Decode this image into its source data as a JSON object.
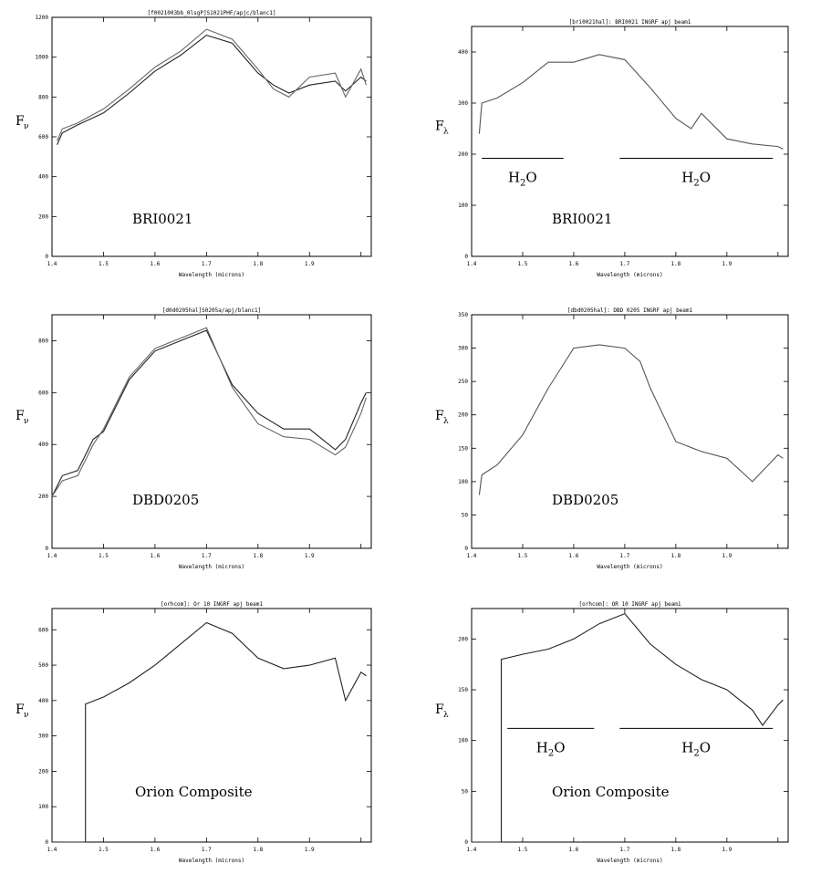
{
  "chart_data": [
    {
      "type": "line",
      "title": "[f0021003bb_0lsgP]S1021PHF/apjc/blanc1]",
      "xlabel": "Wavelength (microns)",
      "ylabel": "F",
      "ylabel_sub": "ν",
      "xlim": [
        1.4,
        2.02
      ],
      "ylim": [
        0,
        1200
      ],
      "xticks": [
        "1.4",
        "1.5",
        "1.6",
        "1.7",
        "1.8",
        "1.9"
      ],
      "yticks": [
        "0",
        "200",
        "400",
        "600",
        "800",
        "1000",
        "1200"
      ],
      "label": "BRI0021",
      "h2o_label": "",
      "series": [
        {
          "color": "#222222",
          "x": [
            1.41,
            1.42,
            1.45,
            1.5,
            1.55,
            1.6,
            1.65,
            1.7,
            1.75,
            1.8,
            1.83,
            1.86,
            1.9,
            1.95,
            1.97,
            2.0,
            2.01
          ],
          "y": [
            560,
            620,
            660,
            720,
            820,
            930,
            1010,
            1110,
            1070,
            920,
            860,
            820,
            860,
            880,
            830,
            900,
            880
          ]
        },
        {
          "color": "#666666",
          "x": [
            1.41,
            1.42,
            1.45,
            1.5,
            1.55,
            1.6,
            1.65,
            1.7,
            1.75,
            1.8,
            1.83,
            1.86,
            1.9,
            1.95,
            1.97,
            2.0,
            2.01
          ],
          "y": [
            580,
            640,
            670,
            740,
            840,
            950,
            1030,
            1140,
            1090,
            940,
            840,
            800,
            900,
            920,
            800,
            940,
            860
          ]
        }
      ]
    },
    {
      "type": "line",
      "title": "[bri0021hal]: BRI0021 INGRF apj beam1",
      "xlabel": "Wavelength (microns)",
      "ylabel": "F",
      "ylabel_sub": "λ",
      "xlim": [
        1.4,
        2.02
      ],
      "ylim": [
        0,
        450
      ],
      "xticks": [
        "1.4",
        "1.5",
        "1.6",
        "1.7",
        "1.8",
        "1.9"
      ],
      "yticks": [
        "0",
        "100",
        "200",
        "300",
        "400"
      ],
      "label": "BRI0021",
      "h2o_label": "H2O",
      "h2o_bands": [
        [
          1.42,
          1.58
        ],
        [
          1.69,
          1.99
        ]
      ],
      "h2o_level": 192,
      "series": [
        {
          "color": "#555555",
          "x": [
            1.415,
            1.42,
            1.45,
            1.5,
            1.55,
            1.6,
            1.65,
            1.7,
            1.75,
            1.8,
            1.83,
            1.85,
            1.9,
            1.95,
            2.0,
            2.01
          ],
          "y": [
            240,
            300,
            310,
            340,
            380,
            380,
            395,
            385,
            330,
            270,
            250,
            280,
            230,
            220,
            215,
            210
          ]
        }
      ]
    },
    {
      "type": "line",
      "title": "[d0d0205hal]S0205a/apj/blanc1]",
      "xlabel": "Wavelength (microns)",
      "ylabel": "F",
      "ylabel_sub": "ν",
      "xlim": [
        1.4,
        2.02
      ],
      "ylim": [
        0,
        900
      ],
      "xticks": [
        "1.4",
        "1.5",
        "1.6",
        "1.7",
        "1.8",
        "1.9"
      ],
      "yticks": [
        "0",
        "200",
        "400",
        "600",
        "800"
      ],
      "label": "DBD0205",
      "h2o_label": "",
      "series": [
        {
          "color": "#222222",
          "x": [
            1.4,
            1.42,
            1.45,
            1.48,
            1.5,
            1.55,
            1.6,
            1.65,
            1.7,
            1.75,
            1.8,
            1.85,
            1.9,
            1.95,
            1.97,
            2.0,
            2.01
          ],
          "y": [
            200,
            280,
            300,
            420,
            450,
            650,
            760,
            800,
            840,
            630,
            520,
            460,
            460,
            380,
            420,
            560,
            600
          ]
        },
        {
          "color": "#666666",
          "x": [
            1.4,
            1.42,
            1.45,
            1.48,
            1.5,
            1.55,
            1.6,
            1.65,
            1.7,
            1.75,
            1.8,
            1.85,
            1.9,
            1.95,
            1.97,
            2.0,
            2.01
          ],
          "y": [
            200,
            260,
            280,
            400,
            460,
            660,
            770,
            810,
            850,
            620,
            480,
            430,
            420,
            360,
            390,
            520,
            580
          ]
        }
      ]
    },
    {
      "type": "line",
      "title": "[dbd0205hal]: DBD 0205 INGRF apj beam1",
      "xlabel": "Wavelength (microns)",
      "ylabel": "F",
      "ylabel_sub": "λ",
      "xlim": [
        1.4,
        2.02
      ],
      "ylim": [
        0,
        350
      ],
      "xticks": [
        "1.4",
        "1.5",
        "1.6",
        "1.7",
        "1.8",
        "1.9"
      ],
      "yticks": [
        "0",
        "50",
        "100",
        "150",
        "200",
        "250",
        "300",
        "350"
      ],
      "label": "DBD0205",
      "h2o_label": "",
      "series": [
        {
          "color": "#555555",
          "x": [
            1.415,
            1.42,
            1.45,
            1.5,
            1.55,
            1.6,
            1.65,
            1.7,
            1.73,
            1.75,
            1.8,
            1.85,
            1.9,
            1.95,
            2.0,
            2.01
          ],
          "y": [
            80,
            110,
            125,
            170,
            240,
            300,
            305,
            300,
            280,
            240,
            160,
            145,
            135,
            100,
            140,
            135
          ]
        }
      ]
    },
    {
      "type": "line",
      "title": "[orhcom]: Or 10 INGRF apj beam1",
      "xlabel": "Wavelength (microns)",
      "ylabel": "F",
      "ylabel_sub": "ν",
      "xlim": [
        1.4,
        2.02
      ],
      "ylim": [
        0,
        660
      ],
      "xticks": [
        "1.4",
        "1.5",
        "1.6",
        "1.7",
        "1.8",
        "1.9"
      ],
      "yticks": [
        "0",
        "100",
        "200",
        "300",
        "400",
        "500",
        "600"
      ],
      "label": "Orion Composite",
      "h2o_label": "",
      "series": [
        {
          "color": "#222222",
          "x": [
            1.4,
            1.465,
            1.465,
            1.5,
            1.55,
            1.6,
            1.65,
            1.7,
            1.75,
            1.8,
            1.85,
            1.9,
            1.95,
            1.97,
            2.0,
            2.01
          ],
          "y": [
            0,
            0,
            390,
            410,
            450,
            500,
            560,
            620,
            590,
            520,
            490,
            500,
            520,
            400,
            480,
            470
          ]
        }
      ]
    },
    {
      "type": "line",
      "title": "[orhcom]: OR 10 INGRF apj beam1",
      "xlabel": "Wavelength (microns)",
      "ylabel": "F",
      "ylabel_sub": "λ",
      "xlim": [
        1.4,
        2.02
      ],
      "ylim": [
        0,
        230
      ],
      "xticks": [
        "1.4",
        "1.5",
        "1.6",
        "1.7",
        "1.8",
        "1.9"
      ],
      "yticks": [
        "0",
        "50",
        "100",
        "150",
        "200"
      ],
      "label": "Orion Composite",
      "h2o_label": "H2O",
      "h2o_bands": [
        [
          1.47,
          1.64
        ],
        [
          1.69,
          1.99
        ]
      ],
      "h2o_level": 112,
      "series": [
        {
          "color": "#222222",
          "x": [
            1.4,
            1.458,
            1.458,
            1.5,
            1.55,
            1.6,
            1.65,
            1.7,
            1.75,
            1.8,
            1.85,
            1.9,
            1.95,
            1.97,
            2.0,
            2.01
          ],
          "y": [
            0,
            0,
            180,
            185,
            190,
            200,
            215,
            225,
            195,
            175,
            160,
            150,
            130,
            115,
            135,
            140
          ]
        }
      ]
    }
  ]
}
